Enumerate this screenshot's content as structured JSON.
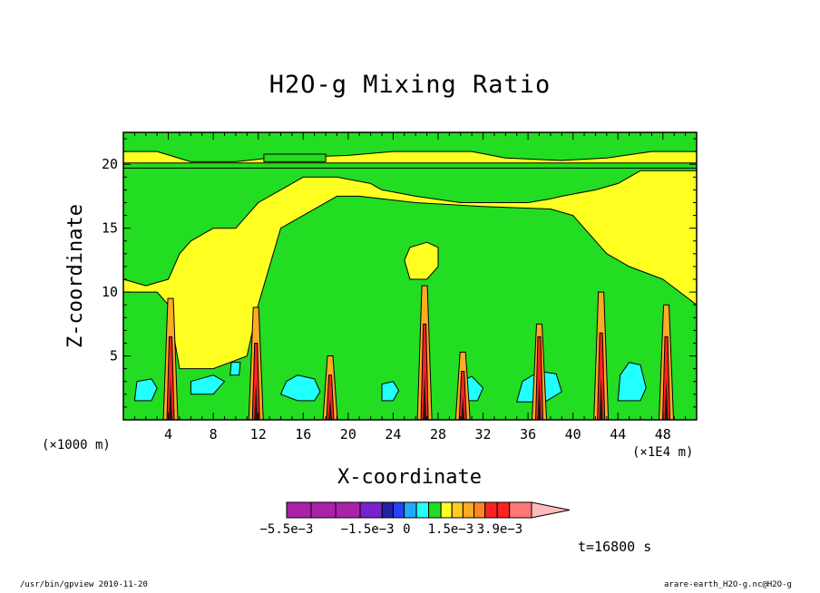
{
  "chart_data": {
    "type": "heatmap",
    "title": "H2O-g Mixing Ratio",
    "xlabel": "X-coordinate",
    "ylabel": "Z-coordinate",
    "x_unit_left": "(×1000 m)",
    "x_unit_right": "(×1E4 m)",
    "xlim": [
      0,
      51
    ],
    "ylim": [
      0,
      22.5
    ],
    "x_ticks": [
      4,
      8,
      12,
      16,
      20,
      24,
      28,
      32,
      36,
      40,
      44,
      48
    ],
    "y_ticks": [
      5,
      10,
      15,
      20
    ],
    "background_level_color": "#22dd22",
    "regions": [
      {
        "level": "yellow",
        "color": "#ffff22",
        "points": [
          [
            0,
            0
          ],
          [
            51,
            0
          ],
          [
            51,
            19.5
          ],
          [
            46,
            19.5
          ],
          [
            44,
            18.5
          ],
          [
            42,
            18
          ],
          [
            39,
            17.5
          ],
          [
            38,
            17.3
          ],
          [
            36,
            17
          ],
          [
            30,
            17
          ],
          [
            26,
            17.5
          ],
          [
            23,
            18
          ],
          [
            22,
            18.5
          ],
          [
            19,
            19
          ],
          [
            16,
            19
          ],
          [
            14,
            18
          ],
          [
            12,
            17
          ],
          [
            11,
            16
          ],
          [
            10,
            15
          ],
          [
            8,
            15
          ],
          [
            6,
            14
          ],
          [
            5,
            13
          ],
          [
            4,
            11
          ],
          [
            2,
            10.5
          ],
          [
            0,
            11
          ]
        ]
      },
      {
        "level": "green",
        "color": "#22dd22",
        "points": [
          [
            0,
            0
          ],
          [
            51,
            0
          ],
          [
            51,
            9
          ],
          [
            48,
            11
          ],
          [
            45,
            12
          ],
          [
            43,
            13
          ],
          [
            41,
            15
          ],
          [
            40,
            16
          ],
          [
            38,
            16.5
          ],
          [
            32,
            16.7
          ],
          [
            26,
            17
          ],
          [
            21,
            17.5
          ],
          [
            19,
            17.5
          ],
          [
            16,
            16
          ],
          [
            14,
            15
          ],
          [
            13,
            12
          ],
          [
            12,
            9
          ],
          [
            11,
            5
          ],
          [
            8,
            4
          ],
          [
            5,
            4
          ],
          [
            4,
            9
          ],
          [
            3,
            10
          ],
          [
            0,
            10
          ]
        ]
      },
      {
        "level": "yellow",
        "color": "#ffff22",
        "points": [
          [
            25.5,
            11
          ],
          [
            27,
            11
          ],
          [
            28,
            12
          ],
          [
            28,
            13.5
          ],
          [
            27,
            13.9
          ],
          [
            25.5,
            13.5
          ],
          [
            25,
            12.5
          ]
        ]
      },
      {
        "level": "yellow",
        "color": "#ffff22",
        "points": [
          [
            0,
            22.5
          ],
          [
            51,
            22.5
          ],
          [
            51,
            20
          ],
          [
            0,
            20
          ]
        ]
      },
      {
        "level": "green",
        "color": "#22dd22",
        "points": [
          [
            0,
            21
          ],
          [
            3,
            21
          ],
          [
            6,
            20.2
          ],
          [
            10,
            20.2
          ],
          [
            13,
            20.5
          ],
          [
            20,
            20.7
          ],
          [
            24,
            21
          ],
          [
            31,
            21
          ],
          [
            34,
            20.5
          ],
          [
            39,
            20.3
          ],
          [
            43,
            20.5
          ],
          [
            47,
            21
          ],
          [
            51,
            21
          ],
          [
            51,
            22.5
          ],
          [
            0,
            22.5
          ]
        ]
      },
      {
        "level": "green",
        "color": "#22dd22",
        "points": [
          [
            12.5,
            20.2
          ],
          [
            18,
            20.2
          ],
          [
            18,
            20.8
          ],
          [
            12.5,
            20.8
          ]
        ]
      },
      {
        "level": "green",
        "color": "#22dd22",
        "points": [
          [
            0,
            19.7
          ],
          [
            51,
            19.7
          ],
          [
            51,
            20.1
          ],
          [
            0,
            20.1
          ]
        ]
      },
      {
        "level": "cyan",
        "color": "#22ffff",
        "points": [
          [
            14,
            2
          ],
          [
            15.5,
            1.5
          ],
          [
            17,
            1.5
          ],
          [
            17.5,
            2.2
          ],
          [
            17,
            3.2
          ],
          [
            15.5,
            3.5
          ],
          [
            14.5,
            3
          ]
        ]
      },
      {
        "level": "cyan",
        "color": "#22ffff",
        "points": [
          [
            23,
            1.5
          ],
          [
            24,
            1.5
          ],
          [
            24.5,
            2.3
          ],
          [
            24,
            3
          ],
          [
            23,
            2.8
          ]
        ]
      },
      {
        "level": "cyan",
        "color": "#22ffff",
        "points": [
          [
            30,
            1.5
          ],
          [
            31.5,
            1.5
          ],
          [
            32,
            2.5
          ],
          [
            31,
            3.4
          ],
          [
            30,
            3
          ]
        ]
      },
      {
        "level": "cyan",
        "color": "#22ffff",
        "points": [
          [
            35,
            1.4
          ],
          [
            37.5,
            1.4
          ],
          [
            39,
            2.2
          ],
          [
            38.5,
            3.6
          ],
          [
            37,
            3.8
          ],
          [
            35.5,
            3
          ]
        ]
      },
      {
        "level": "cyan",
        "color": "#22ffff",
        "points": [
          [
            44,
            1.5
          ],
          [
            46,
            1.5
          ],
          [
            46.5,
            2.5
          ],
          [
            46,
            4.3
          ],
          [
            45,
            4.5
          ],
          [
            44.2,
            3.5
          ]
        ]
      },
      {
        "level": "cyan",
        "color": "#22ffff",
        "points": [
          [
            6,
            2
          ],
          [
            8,
            2
          ],
          [
            9,
            3
          ],
          [
            8,
            3.5
          ],
          [
            6,
            3
          ]
        ]
      },
      {
        "level": "cyan",
        "color": "#22ffff",
        "points": [
          [
            1,
            1.5
          ],
          [
            2.5,
            1.5
          ],
          [
            3,
            2.5
          ],
          [
            2.5,
            3.2
          ],
          [
            1.2,
            3
          ]
        ]
      },
      {
        "level": "cyan",
        "color": "#22ffff",
        "points": [
          [
            9.5,
            3.5
          ],
          [
            10.3,
            3.5
          ],
          [
            10.4,
            4.5
          ],
          [
            9.6,
            4.5
          ]
        ]
      }
    ],
    "towers": [
      {
        "x": 4.2,
        "top": 9.5,
        "core_top": 6.5
      },
      {
        "x": 11.8,
        "top": 8.8,
        "core_top": 6.0
      },
      {
        "x": 18.4,
        "top": 5.0,
        "core_top": 3.5
      },
      {
        "x": 26.8,
        "top": 10.5,
        "core_top": 7.5
      },
      {
        "x": 30.2,
        "top": 5.3,
        "core_top": 3.8
      },
      {
        "x": 37.0,
        "top": 7.5,
        "core_top": 6.5
      },
      {
        "x": 42.5,
        "top": 10.0,
        "core_top": 6.8
      },
      {
        "x": 48.3,
        "top": 9.0,
        "core_top": 6.5
      }
    ],
    "colorbar": {
      "colors": [
        "#aa22aa",
        "#aa22aa",
        "#aa22aa",
        "#7722cc",
        "#2222aa",
        "#2244ff",
        "#22aaff",
        "#22ffff",
        "#22dd22",
        "#ffff22",
        "#ffcc22",
        "#ffaa22",
        "#ff8822",
        "#ff2222",
        "#ff2222",
        "#ff7777",
        "#ffbbbb"
      ],
      "tick_labels": [
        {
          "text": "−5.5e−3",
          "pos": 0.0
        },
        {
          "text": "−1.5e−3",
          "pos": 0.33
        },
        {
          "text": "0",
          "pos": 0.49
        },
        {
          "text": "1.5e−3",
          "pos": 0.67
        },
        {
          "text": "3.9e−3",
          "pos": 0.87
        }
      ]
    }
  },
  "time_label": "t=16800 s",
  "footer_left": "/usr/bin/gpview  2010-11-20",
  "footer_right": "arare-earth_H2O-g.nc@H2O-g"
}
